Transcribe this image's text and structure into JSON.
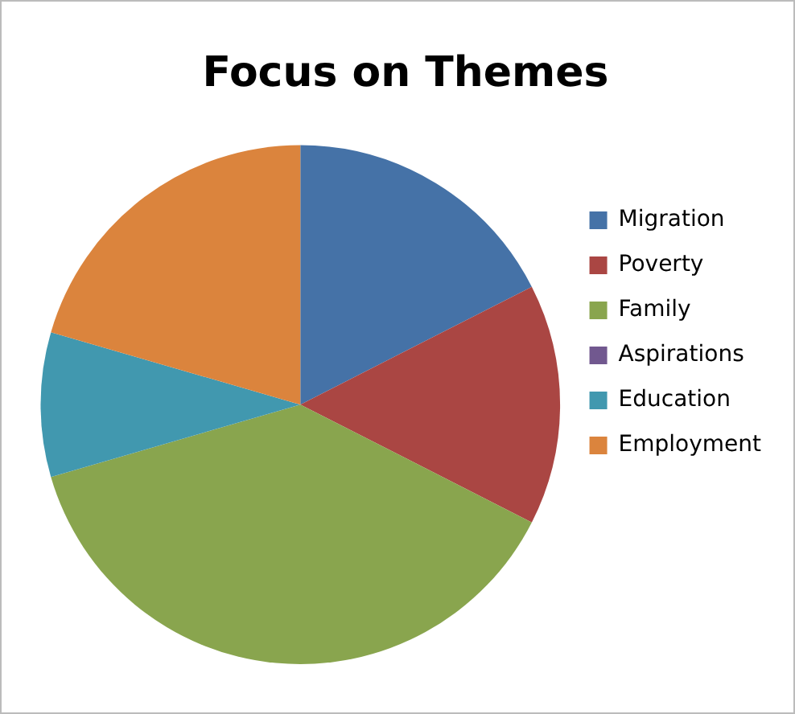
{
  "chart_data": {
    "type": "pie",
    "title": "Focus on Themes",
    "categories": [
      "Migration",
      "Poverty",
      "Family",
      "Aspirations",
      "Education",
      "Employment"
    ],
    "values": [
      17.5,
      15,
      38,
      0,
      9,
      20.5
    ],
    "colors": [
      "#4572a7",
      "#aa4643",
      "#89a54e",
      "#71588f",
      "#4198af",
      "#db843d"
    ],
    "legend": "right"
  }
}
